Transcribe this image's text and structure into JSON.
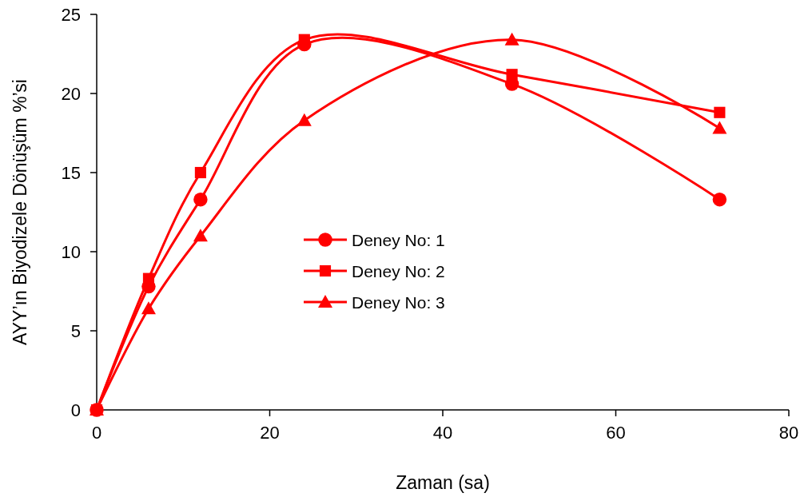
{
  "chart_data": {
    "type": "line",
    "xlabel": "Zaman (sa)",
    "ylabel": "AYY’ın Biyodizele Dönüşüm %’si",
    "x": [
      0,
      6,
      12,
      24,
      48,
      72
    ],
    "series": [
      {
        "name": "Deney No: 1",
        "color": "#ff0000",
        "marker": "circle",
        "values": [
          0,
          7.8,
          13.3,
          23.1,
          20.6,
          13.3
        ]
      },
      {
        "name": "Deney No: 2",
        "color": "#ff0000",
        "marker": "square",
        "values": [
          0,
          8.3,
          15.0,
          23.4,
          21.2,
          18.8
        ]
      },
      {
        "name": "Deney No: 3",
        "color": "#ff0000",
        "marker": "triangle",
        "values": [
          0,
          6.4,
          11.0,
          18.3,
          23.4,
          17.8
        ]
      }
    ],
    "xlim": [
      0,
      80
    ],
    "xticks": [
      0,
      20,
      40,
      60,
      80
    ],
    "ylim": [
      0,
      25
    ],
    "yticks": [
      0,
      5,
      10,
      15,
      20,
      25
    ],
    "grid": false,
    "legend": "center",
    "line_style": "solid"
  }
}
